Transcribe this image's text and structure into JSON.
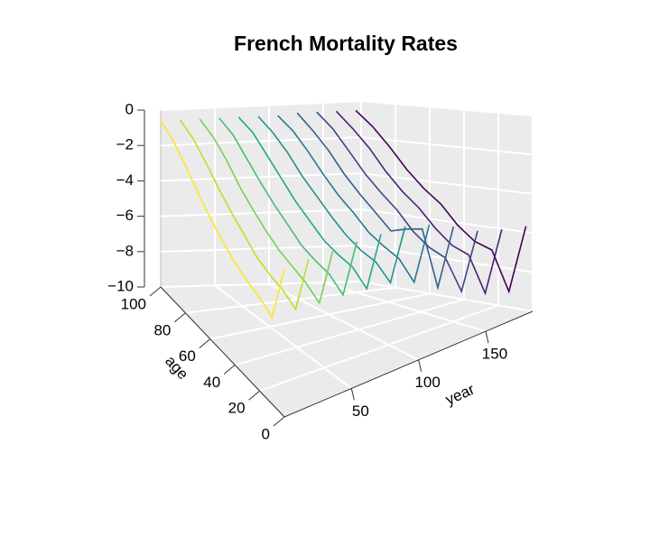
{
  "chart_data": {
    "type": "line3d",
    "title": "French Mortality Rates",
    "xlabel": "year",
    "ylabel": "age",
    "xlim": [
      0,
      185
    ],
    "xticks": [
      50,
      100,
      150
    ],
    "ylim": [
      0,
      100
    ],
    "yticks": [
      0,
      20,
      40,
      60,
      80,
      100
    ],
    "zlim": [
      -10,
      0
    ],
    "zticks": [
      {
        "value": -10,
        "label": "−10"
      },
      {
        "value": -8,
        "label": "−8"
      },
      {
        "value": -6,
        "label": "−6"
      },
      {
        "value": -4,
        "label": "−4"
      },
      {
        "value": -2,
        "label": "−2"
      },
      0
    ],
    "grid": true,
    "x": [
      0,
      10,
      20,
      30,
      40,
      50,
      60,
      70,
      80,
      90,
      100
    ],
    "series": [
      {
        "year": 0,
        "color": "#fde725",
        "values": [
          -1.8,
          -5.2,
          -4.8,
          -4.6,
          -4.3,
          -3.8,
          -3.2,
          -2.5,
          -1.7,
          -1.0,
          -0.6
        ]
      },
      {
        "year": 18,
        "color": "#bddf26",
        "values": [
          -1.9,
          -5.3,
          -4.9,
          -4.7,
          -4.4,
          -3.8,
          -3.2,
          -2.5,
          -1.7,
          -1.0,
          -0.6
        ]
      },
      {
        "year": 36,
        "color": "#7ad151",
        "values": [
          -2.1,
          -5.5,
          -5.0,
          -4.7,
          -4.4,
          -3.9,
          -3.3,
          -2.6,
          -1.7,
          -1.0,
          -0.6
        ]
      },
      {
        "year": 54,
        "color": "#44bf70",
        "values": [
          -2.2,
          -5.6,
          -5.0,
          -4.8,
          -4.5,
          -3.9,
          -3.3,
          -2.6,
          -1.8,
          -1.0,
          -0.6
        ]
      },
      {
        "year": 72,
        "color": "#22a884",
        "values": [
          -2.4,
          -5.8,
          -5.1,
          -4.9,
          -4.6,
          -4.0,
          -3.4,
          -2.6,
          -1.8,
          -1.0,
          -0.6
        ]
      },
      {
        "year": 90,
        "color": "#21918c",
        "values": [
          -2.6,
          -6.0,
          -5.3,
          -5.1,
          -4.7,
          -4.1,
          -3.4,
          -2.7,
          -1.8,
          -1.1,
          -0.6
        ]
      },
      {
        "year": 108,
        "color": "#2a788e",
        "values": [
          -3.1,
          -6.5,
          -5.6,
          -5.3,
          -4.9,
          -4.2,
          -3.6,
          -2.8,
          -1.9,
          -1.1,
          -0.6
        ]
      },
      {
        "year": 126,
        "color": "#355f8d",
        "values": [
          -3.8,
          -7.3,
          -4.5,
          -4.8,
          -5.2,
          -4.5,
          -3.8,
          -3.0,
          -2.0,
          -1.2,
          -0.5
        ]
      },
      {
        "year": 144,
        "color": "#414487",
        "values": [
          -4.6,
          -8.0,
          -6.5,
          -6.2,
          -5.6,
          -4.7,
          -4.0,
          -3.2,
          -2.2,
          -1.2,
          -0.5
        ]
      },
      {
        "year": 162,
        "color": "#482475",
        "values": [
          -5.1,
          -8.6,
          -6.8,
          -6.5,
          -5.8,
          -4.9,
          -4.2,
          -3.3,
          -2.2,
          -1.3,
          -0.5
        ]
      },
      {
        "year": 180,
        "color": "#440154",
        "values": [
          -5.5,
          -9.0,
          -7.0,
          -6.7,
          -6.0,
          -5.0,
          -4.3,
          -3.4,
          -2.3,
          -1.3,
          -0.5
        ]
      }
    ]
  }
}
